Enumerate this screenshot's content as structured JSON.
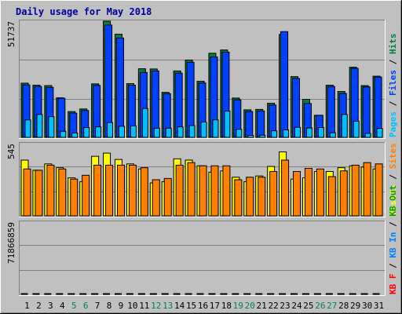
{
  "chart_data": {
    "type": "bar",
    "title": "Daily usage for May 2018",
    "categories": [
      "1",
      "2",
      "3",
      "4",
      "5",
      "6",
      "7",
      "8",
      "9",
      "10",
      "11",
      "12",
      "13",
      "14",
      "15",
      "16",
      "17",
      "18",
      "19",
      "20",
      "21",
      "22",
      "23",
      "24",
      "25",
      "26",
      "27",
      "28",
      "29",
      "30",
      "31"
    ],
    "weekend_days": [
      "5",
      "6",
      "12",
      "13",
      "19",
      "20",
      "26",
      "27"
    ],
    "panels": [
      {
        "id": "top",
        "scale_label": "51737",
        "ymax": 51737,
        "legend": [
          {
            "text": "Pages",
            "color": "#00C0FF"
          },
          {
            "text": " / ",
            "color": "#000000"
          },
          {
            "text": "Files",
            "color": "#0040FF"
          },
          {
            "text": " / ",
            "color": "#000000"
          },
          {
            "text": "Hits",
            "color": "#008040"
          }
        ],
        "series": [
          {
            "name": "Hits",
            "color": "#008040",
            "values": [
              24800,
              23900,
              23700,
              18100,
              11800,
              13000,
              24500,
              53500,
              47200,
              24600,
              31400,
              31300,
              20600,
              30400,
              35400,
              25700,
              38500,
              40000,
              18000,
              12600,
              12800,
              15600,
              47100,
              27800,
              17400,
              10100,
              23900,
              21000,
              32100,
              23700,
              28000
            ]
          },
          {
            "name": "Files",
            "color": "#0040FF",
            "values": [
              24000,
              23300,
              22900,
              17900,
              11100,
              12300,
              23800,
              51400,
              45500,
              23900,
              29700,
              30400,
              20000,
              29400,
              34400,
              24900,
              36800,
              39000,
              17200,
              11800,
              12100,
              14800,
              48400,
              27000,
              15500,
              10100,
              23300,
              20100,
              31600,
              23100,
              27600
            ]
          },
          {
            "name": "Pages",
            "color": "#00C0FF",
            "values": [
              8000,
              10500,
              9500,
              2800,
              2000,
              4500,
              4800,
              6800,
              5100,
              5300,
              13200,
              4200,
              4200,
              4800,
              5400,
              7000,
              8000,
              12000,
              3700,
              900,
              1000,
              3000,
              3400,
              4600,
              4300,
              4500,
              2100,
              10500,
              7400,
              1800,
              4100
            ]
          }
        ]
      },
      {
        "id": "middle",
        "scale_label": "545",
        "ymax": 545,
        "legend": [
          {
            "text": "Visits",
            "color": "#FFFF00"
          },
          {
            "text": " / ",
            "color": "#000000"
          },
          {
            "text": "Sites",
            "color": "#FF8000"
          }
        ],
        "series": [
          {
            "name": "Visits",
            "color": "#FFFF00",
            "values": [
              440,
              360,
              410,
              380,
              300,
              270,
              470,
              495,
              445,
              410,
              370,
              260,
              270,
              450,
              440,
              395,
              345,
              355,
              305,
              270,
              315,
              390,
              505,
              290,
              300,
              350,
              350,
              380,
              395,
              385,
              370
            ]
          },
          {
            "name": "Sites",
            "color": "#FF8000",
            "values": [
              370,
              360,
              400,
              370,
              290,
              320,
              400,
              400,
              400,
              400,
              380,
              285,
              295,
              400,
              420,
              395,
              395,
              395,
              285,
              305,
              305,
              350,
              440,
              350,
              375,
              370,
              310,
              355,
              400,
              420,
              410
            ]
          }
        ]
      },
      {
        "id": "bottom",
        "scale_label": "71866859",
        "ymax": 71866859,
        "legend": [
          {
            "text": "KB F",
            "color": "#FF0000"
          },
          {
            "text": " / ",
            "color": "#000000"
          },
          {
            "text": "KB In",
            "color": "#0080FF"
          },
          {
            "text": " / ",
            "color": "#000000"
          },
          {
            "text": "KB Out",
            "color": "#00A000"
          }
        ],
        "series": [
          {
            "name": "KB F",
            "color": "#FF0000",
            "values": [
              21200,
              16800,
              10700,
              11700,
              7000,
              3700,
              23000,
              71000,
              19800,
              13100,
              22900,
              34500,
              16300,
              19800,
              29600,
              13100,
              43300,
              21200,
              5100,
              6100,
              7000,
              6900,
              72700,
              23400,
              9900,
              5100,
              25000,
              8000,
              30900,
              29400,
              31400
            ]
          }
        ]
      }
    ]
  }
}
